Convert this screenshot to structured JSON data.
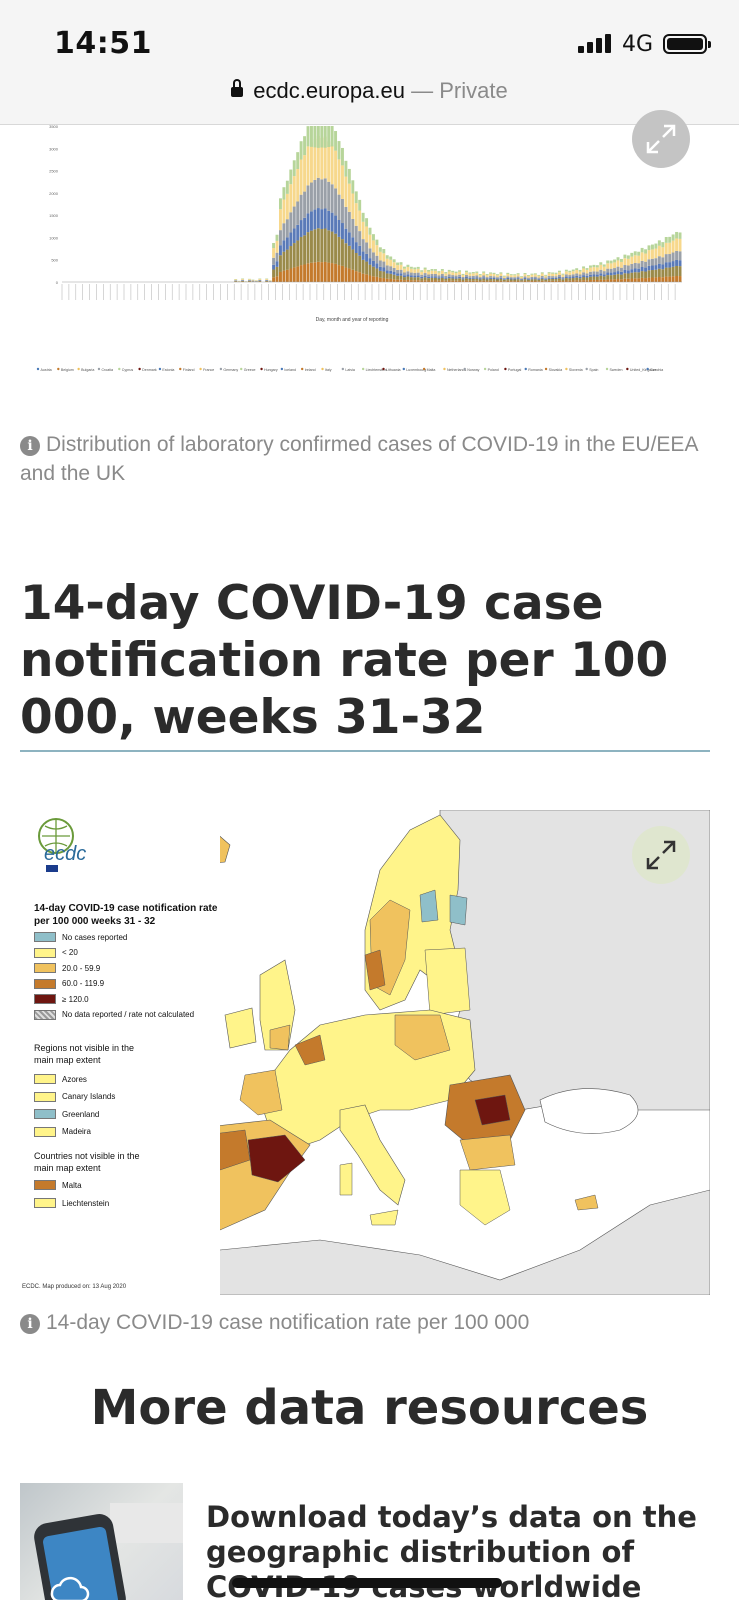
{
  "status_bar": {
    "time": "14:51",
    "network": "4G"
  },
  "url_bar": {
    "domain": "ecdc.europa.eu",
    "separator": " — ",
    "mode": "Private"
  },
  "top_chart": {
    "xlabel": "Day, month and year of reporting",
    "legend": [
      "Austria",
      "Belgium",
      "Bulgaria",
      "Croatia",
      "Cyprus",
      "Denmark",
      "Estonia",
      "Finland",
      "France",
      "Germany",
      "Greece",
      "Hungary",
      "Iceland",
      "Ireland",
      "Italy",
      "Latvia",
      "Liechtenstein",
      "Lithuania",
      "Luxembourg",
      "Malta",
      "Netherlands",
      "Norway",
      "Poland",
      "Portugal",
      "Romania",
      "Slovakia",
      "Slovenia",
      "Spain",
      "Sweden",
      "United_Kingdom",
      "Czechia"
    ],
    "y_ticks": [
      "0",
      "500",
      "1000",
      "1500",
      "2000",
      "2500",
      "3000",
      "3500"
    ],
    "caption": "Distribution of laboratory confirmed cases of COVID-19 in the EU/EEA and the UK"
  },
  "section": {
    "title": "14-day COVID-19 case notification rate per 100 000, weeks 31-32"
  },
  "map": {
    "legend_title": "14-day COVID-19 case notification rate per 100 000 weeks 31 - 32",
    "legend_items": [
      {
        "label": "No cases reported",
        "color": "#8fbfc9"
      },
      {
        "label": "< 20",
        "color": "#fff48a"
      },
      {
        "label": "20.0 - 59.9",
        "color": "#f0c25e"
      },
      {
        "label": "60.0 - 119.9",
        "color": "#c47a2c"
      },
      {
        "label": "≥ 120.0",
        "color": "#6e1610"
      },
      {
        "label": "No data reported / rate not calculated",
        "color": "#a9a9a9"
      }
    ],
    "regions_heading": "Regions not visible in the main map extent",
    "regions": [
      {
        "label": "Azores",
        "color": "#fff48a"
      },
      {
        "label": "Canary Islands",
        "color": "#fff48a"
      },
      {
        "label": "Greenland",
        "color": "#8fbfc9"
      },
      {
        "label": "Madeira",
        "color": "#fff48a"
      }
    ],
    "countries_heading": "Countries not visible in the main map extent",
    "countries": [
      {
        "label": "Malta",
        "color": "#c47a2c"
      },
      {
        "label": "Liechtenstein",
        "color": "#fff48a"
      }
    ],
    "footer": "ECDC. Map produced on: 13 Aug 2020",
    "caption": "14-day COVID-19 case notification rate per 100 000"
  },
  "more": {
    "title": "More data resources",
    "resource_title": "Download today’s data on the geographic distribution of COVID-19 cases worldwide"
  }
}
